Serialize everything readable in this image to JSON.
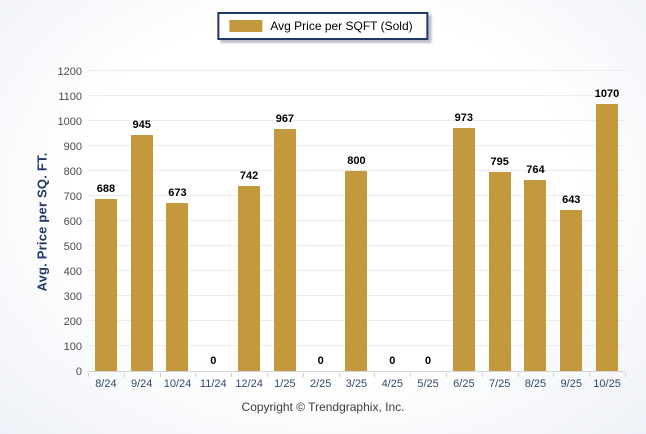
{
  "legend": {
    "label": "Avg Price per SQFT (Sold)"
  },
  "chart_data": {
    "type": "bar",
    "categories": [
      "8/24",
      "9/24",
      "10/24",
      "11/24",
      "12/24",
      "1/25",
      "2/25",
      "3/25",
      "4/25",
      "5/25",
      "6/25",
      "7/25",
      "8/25",
      "9/25",
      "10/25"
    ],
    "series": [
      {
        "name": "Avg Price per SQFT (Sold)",
        "values": [
          688,
          945,
          673,
          0,
          742,
          967,
          0,
          800,
          0,
          0,
          973,
          795,
          764,
          643,
          1070
        ]
      }
    ],
    "title": "",
    "xlabel": "",
    "ylabel": "Avg. Price per SQ. FT.",
    "ylim": [
      0,
      1200
    ],
    "ytick_step": 100,
    "grid": true,
    "legend_position": "top",
    "bar_color": "#C4993E",
    "value_labels_shown": true
  },
  "footer": {
    "copyright": "Copyright © Trendgraphix, Inc."
  },
  "colors": {
    "bar": "#C4993E",
    "navy": "#1F3864",
    "x_label": "#31496F",
    "y_tick_label": "#4A4A4A",
    "gridline": "#ECECEC",
    "value_label": "#000000"
  }
}
